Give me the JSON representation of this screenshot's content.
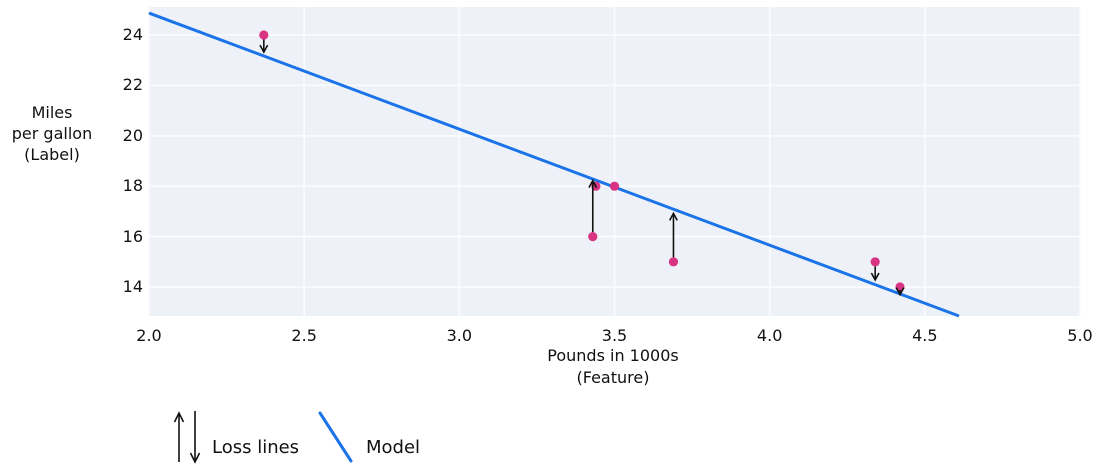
{
  "figure": {
    "y_axis_label": "Miles\nper gallon\n(Label)",
    "x_axis_label": "Pounds in 1000s\n(Feature)"
  },
  "legend": {
    "loss_label": "Loss lines",
    "model_label": "Model"
  },
  "chart_data": {
    "type": "scatter",
    "title": "",
    "xlabel": "Pounds in 1000s (Feature)",
    "ylabel": "Miles per gallon (Label)",
    "xlim": [
      2.0,
      5.0
    ],
    "ylim": [
      12.85,
      25.11
    ],
    "grid": true,
    "x_ticks": [
      {
        "value": 2.0,
        "label": "2.0"
      },
      {
        "value": 2.5,
        "label": "2.5"
      },
      {
        "value": 3.0,
        "label": "3.0"
      },
      {
        "value": 3.5,
        "label": "3.5"
      },
      {
        "value": 4.0,
        "label": "4.0"
      },
      {
        "value": 4.5,
        "label": "4.5"
      },
      {
        "value": 5.0,
        "label": "5.0"
      }
    ],
    "y_ticks": [
      {
        "value": 14,
        "label": "14"
      },
      {
        "value": 16,
        "label": "16"
      },
      {
        "value": 18,
        "label": "18"
      },
      {
        "value": 20,
        "label": "20"
      },
      {
        "value": 22,
        "label": "22"
      },
      {
        "value": 24,
        "label": "24"
      }
    ],
    "points": [
      {
        "x": 2.37,
        "y": 24
      },
      {
        "x": 3.44,
        "y": 18
      },
      {
        "x": 3.5,
        "y": 18
      },
      {
        "x": 3.43,
        "y": 16
      },
      {
        "x": 3.69,
        "y": 15
      },
      {
        "x": 4.34,
        "y": 15
      },
      {
        "x": 4.42,
        "y": 14
      }
    ],
    "model_line": {
      "x1": 2.0,
      "y1": 24.87,
      "x2": 4.61,
      "y2": 12.85,
      "slope": -4.6,
      "intercept": 34.06
    },
    "loss_arrows": [
      {
        "x": 2.37,
        "from_y": 23.82,
        "to_y": 23.32,
        "direction": "down"
      },
      {
        "x": 3.43,
        "from_y": 16.18,
        "to_y": 18.22,
        "direction": "up"
      },
      {
        "x": 3.69,
        "from_y": 15.18,
        "to_y": 16.92,
        "direction": "up"
      },
      {
        "x": 4.34,
        "from_y": 14.82,
        "to_y": 14.28,
        "direction": "down"
      },
      {
        "x": 4.42,
        "from_y": 13.88,
        "to_y": 13.7,
        "direction": "down"
      }
    ],
    "colors": {
      "model_line": "#1a73e8",
      "points": "#d93383",
      "arrows": "#111111",
      "plot_bg": "#eef1f7",
      "grid": "#fbfcff"
    }
  }
}
